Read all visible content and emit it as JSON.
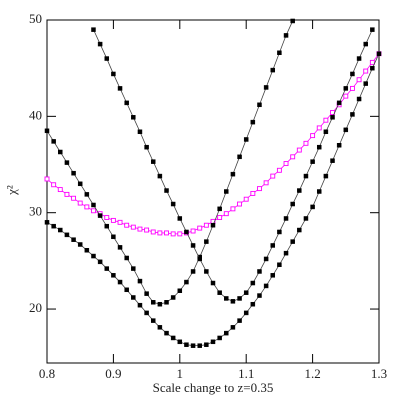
{
  "chart_data": {
    "type": "line",
    "xlabel": "Scale change to z=0.35",
    "ylabel": "χ²",
    "x": [
      0.8,
      0.81,
      0.82,
      0.83,
      0.84,
      0.85,
      0.86,
      0.87,
      0.88,
      0.89,
      0.9,
      0.91,
      0.92,
      0.93,
      0.94,
      0.95,
      0.96,
      0.97,
      0.98,
      0.99,
      1.0,
      1.01,
      1.02,
      1.03,
      1.04,
      1.05,
      1.06,
      1.07,
      1.08,
      1.09,
      1.1,
      1.11,
      1.12,
      1.13,
      1.14,
      1.15,
      1.16,
      1.17,
      1.18,
      1.19,
      1.2,
      1.21,
      1.22,
      1.23,
      1.24,
      1.25,
      1.26,
      1.27,
      1.28,
      1.29,
      1.3
    ],
    "series": [
      {
        "color": "#ff00ff",
        "marker": "open-square",
        "values": [
          33.5,
          32.9,
          32.4,
          31.9,
          31.5,
          31.0,
          30.6,
          30.2,
          29.9,
          29.5,
          29.2,
          29.0,
          28.7,
          28.5,
          28.3,
          28.2,
          28.0,
          27.9,
          27.9,
          27.8,
          27.8,
          27.9,
          28.1,
          28.4,
          28.7,
          29.1,
          29.5,
          29.9,
          30.4,
          30.9,
          31.4,
          32.0,
          32.5,
          33.1,
          33.8,
          34.4,
          35.1,
          35.8,
          36.5,
          37.2,
          38.0,
          38.8,
          39.6,
          40.4,
          41.2,
          42.1,
          42.9,
          43.8,
          44.7,
          45.6,
          46.5
        ]
      },
      {
        "color": "#000000",
        "marker": "filled-square",
        "values": [
          38.5,
          37.4,
          36.3,
          35.2,
          34.1,
          33.0,
          31.9,
          30.8,
          29.7,
          28.6,
          27.5,
          26.4,
          25.3,
          24.2,
          22.9,
          21.6,
          20.7,
          20.5,
          20.7,
          21.2,
          21.9,
          22.8,
          23.9,
          25.4,
          27.0,
          28.7,
          30.4,
          32.2,
          34.0,
          35.8,
          37.6,
          39.4,
          41.2,
          43.0,
          44.8,
          46.6,
          48.4,
          49.9,
          null,
          null,
          null,
          null,
          null,
          null,
          null,
          null,
          null,
          null,
          null,
          null,
          null
        ]
      },
      {
        "color": "#000000",
        "marker": "filled-square",
        "values": [
          null,
          null,
          null,
          null,
          null,
          null,
          null,
          49.0,
          47.5,
          46.0,
          44.4,
          42.9,
          41.4,
          39.9,
          38.4,
          36.8,
          35.3,
          33.8,
          32.3,
          30.9,
          29.4,
          28.0,
          26.6,
          25.2,
          23.9,
          22.7,
          21.7,
          21.1,
          20.8,
          21.1,
          21.7,
          22.7,
          23.9,
          25.2,
          26.6,
          28.0,
          29.4,
          30.9,
          32.3,
          33.8,
          35.3,
          36.8,
          38.4,
          39.9,
          41.4,
          42.9,
          44.4,
          46.0,
          47.5,
          49.0,
          null
        ]
      },
      {
        "color": "#000000",
        "marker": "filled-square",
        "values": [
          29.0,
          28.6,
          28.2,
          27.7,
          27.2,
          26.7,
          26.1,
          25.5,
          24.9,
          24.2,
          23.5,
          22.8,
          22.0,
          21.2,
          20.4,
          19.6,
          18.8,
          18.1,
          17.5,
          17.0,
          16.6,
          16.3,
          16.2,
          16.2,
          16.3,
          16.6,
          17.0,
          17.5,
          18.1,
          18.8,
          19.6,
          20.5,
          21.4,
          22.4,
          23.5,
          24.6,
          25.8,
          27.0,
          28.2,
          29.4,
          30.6,
          32.2,
          33.8,
          35.4,
          37.0,
          38.6,
          40.2,
          41.8,
          43.4,
          45.0,
          46.5
        ]
      }
    ],
    "xlim": [
      0.8,
      1.3
    ],
    "xticks": [
      0.8,
      0.9,
      1,
      1.1,
      1.2,
      1.3
    ],
    "ylim": [
      14.4,
      50
    ],
    "yticks": [
      20,
      30,
      40,
      50
    ]
  }
}
